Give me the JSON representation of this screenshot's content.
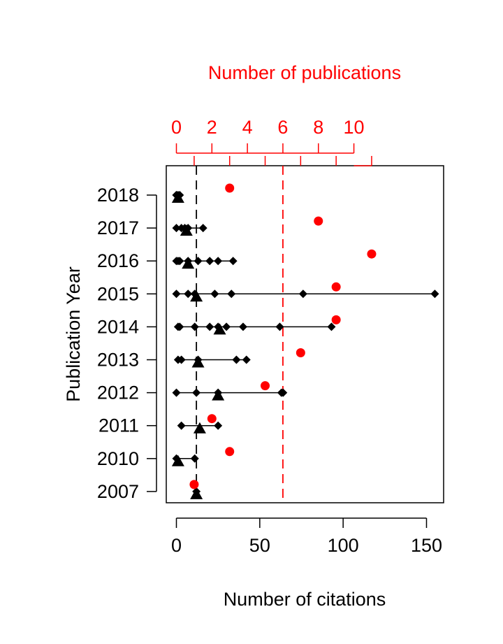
{
  "chart_data": {
    "type": "scatter",
    "xlabel": "Number of citations",
    "ylabel": "Publication Year",
    "top_axis_label": "Number of publications",
    "xlim": [
      -5,
      162
    ],
    "xticks": [
      "0",
      "50",
      "100",
      "150"
    ],
    "top_xlim": [
      -0.28,
      11.4
    ],
    "top_xticks": [
      "0",
      "2",
      "4",
      "6",
      "8",
      "10"
    ],
    "categories": [
      "2018",
      "2017",
      "2016",
      "2015",
      "2014",
      "2013",
      "2012",
      "2011",
      "2010",
      "2007"
    ],
    "colors": {
      "citations": "#000000",
      "publications": "#ff0000"
    },
    "series": [
      {
        "marker": "diamond",
        "axis": "bottom",
        "points": [
          {
            "year": "2018",
            "values": [
              0,
              0,
              1,
              2
            ]
          },
          {
            "year": "2017",
            "values": [
              0,
              3,
              5,
              7,
              16
            ]
          },
          {
            "year": "2016",
            "values": [
              0,
              1,
              2,
              7,
              13,
              20,
              25,
              34
            ]
          },
          {
            "year": "2015",
            "values": [
              0,
              7,
              11,
              23,
              33,
              76,
              155
            ]
          },
          {
            "year": "2014",
            "values": [
              1,
              2,
              11,
              20,
              25,
              30,
              40,
              62,
              93
            ]
          },
          {
            "year": "2013",
            "values": [
              1,
              3,
              13,
              36,
              42
            ]
          },
          {
            "year": "2012",
            "values": [
              0,
              12,
              25,
              63,
              64
            ]
          },
          {
            "year": "2011",
            "values": [
              3,
              25
            ]
          },
          {
            "year": "2010",
            "values": [
              0,
              11
            ]
          },
          {
            "year": "2007",
            "values": [
              12
            ]
          }
        ]
      },
      {
        "marker": "triangle",
        "axis": "bottom",
        "points": [
          {
            "year": "2018",
            "value": 1
          },
          {
            "year": "2017",
            "value": 6
          },
          {
            "year": "2016",
            "value": 7
          },
          {
            "year": "2015",
            "value": 12
          },
          {
            "year": "2014",
            "value": 26
          },
          {
            "year": "2013",
            "value": 13
          },
          {
            "year": "2012",
            "value": 25
          },
          {
            "year": "2011",
            "value": 14
          },
          {
            "year": "2010",
            "value": 1
          },
          {
            "year": "2007",
            "value": 12
          }
        ]
      },
      {
        "marker": "circle",
        "axis": "top",
        "points": [
          {
            "year": "2018",
            "value": 3
          },
          {
            "year": "2017",
            "value": 8
          },
          {
            "year": "2016",
            "value": 11
          },
          {
            "year": "2015",
            "value": 9
          },
          {
            "year": "2014",
            "value": 9
          },
          {
            "year": "2013",
            "value": 7
          },
          {
            "year": "2012",
            "value": 5
          },
          {
            "year": "2011",
            "value": 2
          },
          {
            "year": "2010",
            "value": 3
          },
          {
            "year": "2007",
            "value": 1
          }
        ]
      }
    ],
    "reference_lines": [
      {
        "axis": "bottom",
        "value": 12,
        "style": "dashed",
        "color": "#000000"
      },
      {
        "axis": "top",
        "value": 6,
        "style": "dashed",
        "color": "#ff0000"
      }
    ]
  }
}
